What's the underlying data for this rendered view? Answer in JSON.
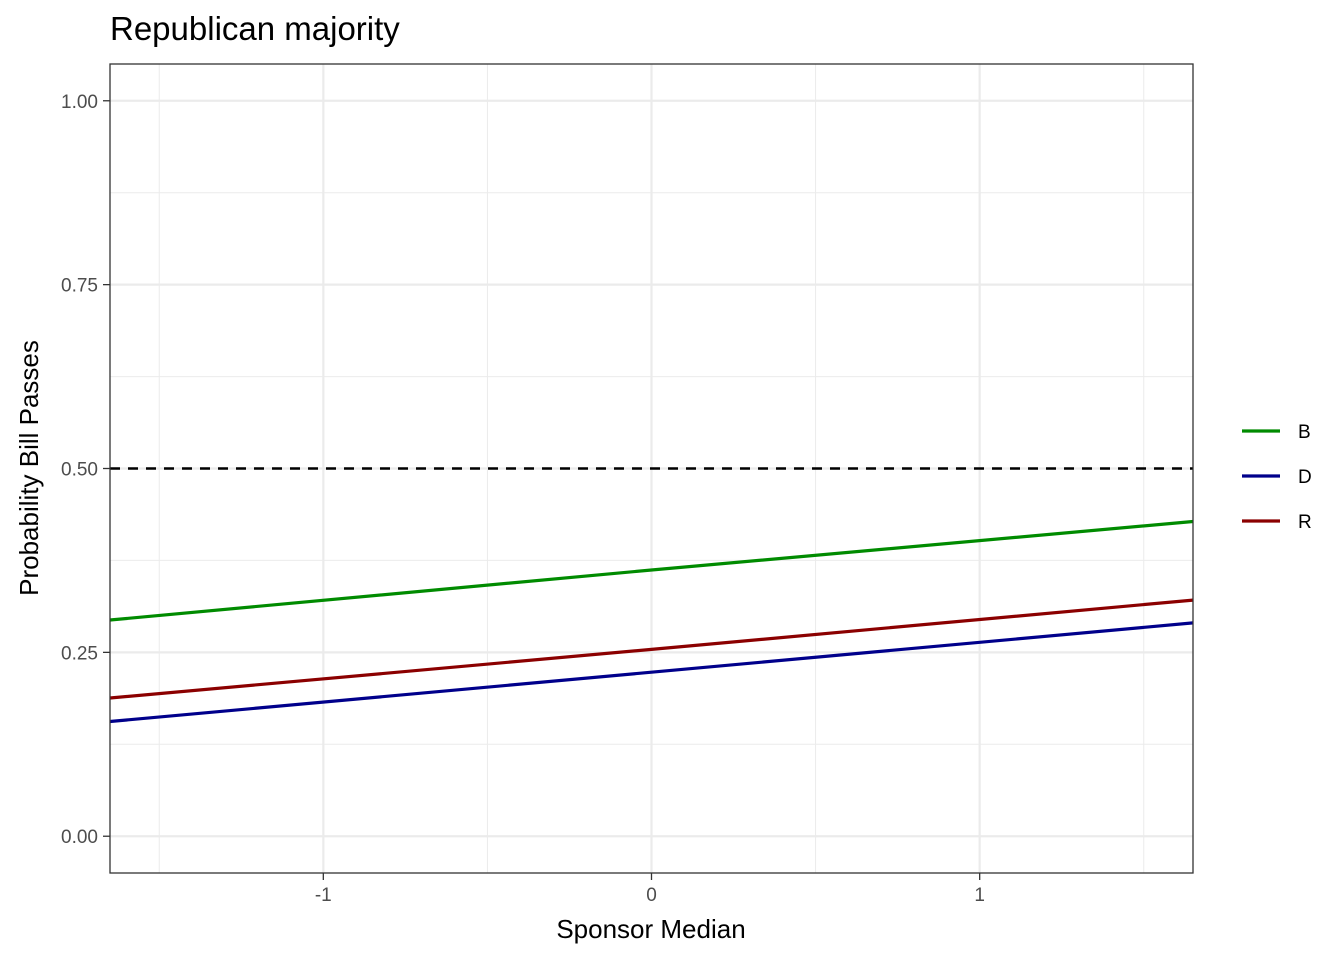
{
  "chart_data": {
    "type": "line",
    "title": "Republican majority",
    "xlabel": "Sponsor Median",
    "ylabel": "Probability Bill Passes",
    "xlim": [
      -1.65,
      1.65
    ],
    "ylim": [
      -0.05,
      1.05
    ],
    "x_ticks": [
      {
        "value": -1,
        "label": "-1"
      },
      {
        "value": 0,
        "label": "0"
      },
      {
        "value": 1,
        "label": "1"
      }
    ],
    "x_minor": [
      -1.5,
      -0.5,
      0.5,
      1.5
    ],
    "y_ticks": [
      {
        "value": 0,
        "label": "0.00"
      },
      {
        "value": 0.25,
        "label": "0.25"
      },
      {
        "value": 0.5,
        "label": "0.50"
      },
      {
        "value": 0.75,
        "label": "0.75"
      },
      {
        "value": 1,
        "label": "1.00"
      }
    ],
    "y_minor": [
      0.125,
      0.375,
      0.625,
      0.875
    ],
    "grid": true,
    "legend_position": "right",
    "reference_line": {
      "y": 0.5,
      "style": "dashed",
      "color": "#000000"
    },
    "series": [
      {
        "name": "B",
        "color": "#008B00",
        "x": [
          -1.65,
          0,
          1.65
        ],
        "y": [
          0.294,
          0.362,
          0.428
        ]
      },
      {
        "name": "D",
        "color": "#00008B",
        "x": [
          -1.65,
          0,
          1.65
        ],
        "y": [
          0.156,
          0.223,
          0.29
        ]
      },
      {
        "name": "R",
        "color": "#8B0000",
        "x": [
          -1.65,
          0,
          1.65
        ],
        "y": [
          0.188,
          0.254,
          0.321
        ]
      }
    ]
  }
}
